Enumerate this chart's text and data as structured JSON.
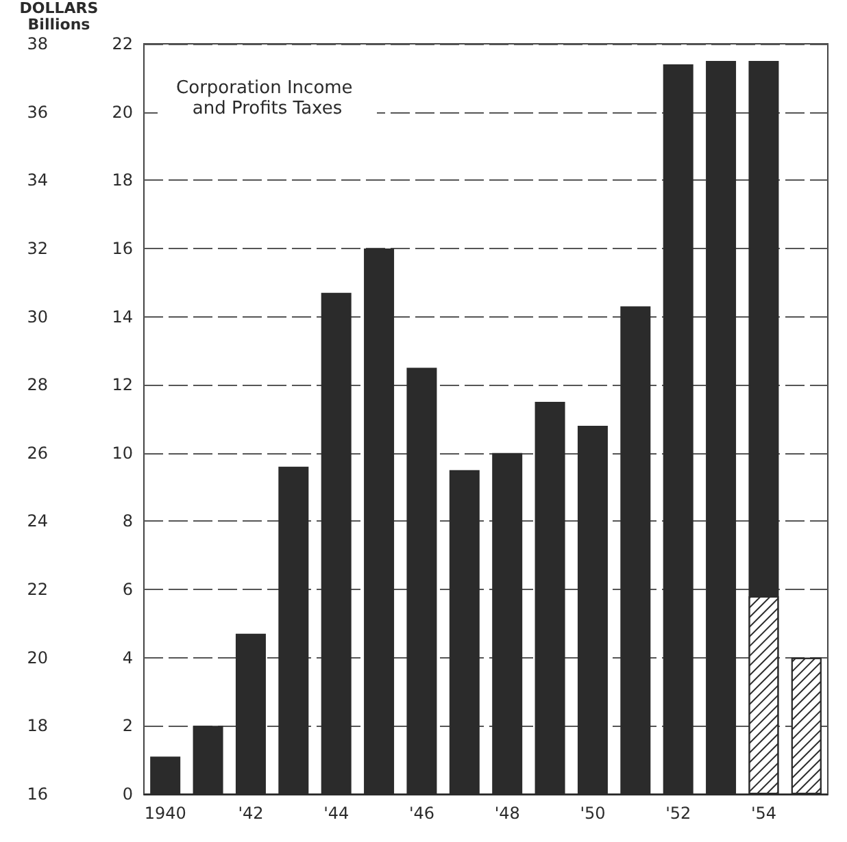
{
  "chart_data": {
    "type": "bar",
    "title": "Corporation Income and Profits Taxes",
    "y2label": "DOLLARS Billions",
    "categories": [
      "1940",
      null,
      "'42",
      null,
      "'44",
      null,
      "'46",
      null,
      "'48",
      null,
      "'50",
      null,
      "'52",
      null,
      "'54",
      null
    ],
    "stacked": true,
    "series": [
      {
        "color": "#ffffff",
        "values": [
          null,
          null,
          null,
          null,
          null,
          null,
          null,
          null,
          null,
          null,
          null,
          null,
          null,
          null,
          5.8,
          4.0
        ]
      },
      {
        "color": "#2b2b2b",
        "values": [
          1.1,
          2.0,
          4.7,
          9.6,
          14.7,
          16.0,
          12.5,
          9.5,
          10.0,
          11.5,
          10.8,
          14.3,
          21.4,
          21.5,
          15.7,
          null
        ]
      }
    ],
    "ylim": [
      0,
      22
    ],
    "yticks": [
      0,
      2,
      4,
      6,
      8,
      10,
      12,
      14,
      16,
      18,
      20,
      22
    ],
    "y2lim": [
      16,
      38
    ],
    "y2ticks": [
      16,
      18,
      20,
      22,
      24,
      26,
      28,
      30,
      32,
      34,
      36,
      38
    ],
    "grid": "y"
  }
}
